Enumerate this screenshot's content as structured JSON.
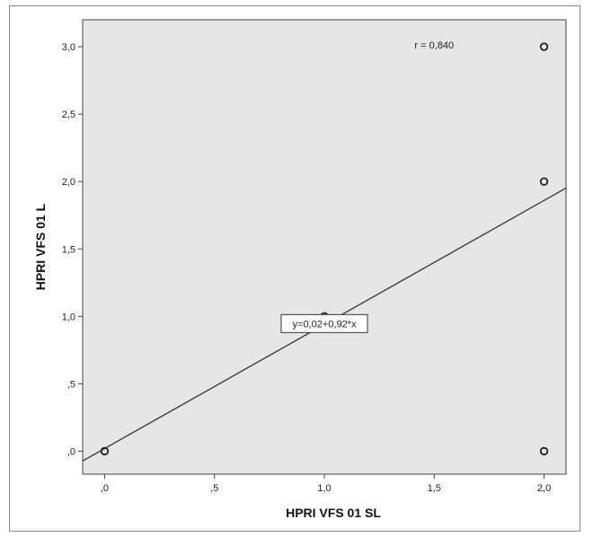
{
  "chart_data": {
    "type": "scatter",
    "xlabel": "HPRI VFS 01 SL",
    "ylabel": "HPRI VFS 01 L",
    "xlim": [
      -0.1,
      2.1
    ],
    "ylim": [
      -0.17,
      3.2
    ],
    "x_ticks": [
      0,
      0.5,
      1.0,
      1.5,
      2.0
    ],
    "x_tick_labels": [
      ",0",
      ",5",
      "1,0",
      "1,5",
      "2,0"
    ],
    "y_ticks": [
      0,
      0.5,
      1.0,
      1.5,
      2.0,
      2.5,
      3.0
    ],
    "y_tick_labels": [
      ",0",
      ",5",
      "1,0",
      "1,5",
      "2,0",
      "2,5",
      "3,0"
    ],
    "points": [
      {
        "x": 0,
        "y": 0
      },
      {
        "x": 1,
        "y": 1
      },
      {
        "x": 2,
        "y": 2
      },
      {
        "x": 2,
        "y": 3
      },
      {
        "x": 2,
        "y": 0
      }
    ],
    "fit_line": {
      "intercept": 0.02,
      "slope": 0.92,
      "label": "y=0,02+0,92*x"
    },
    "correlation_label": "r = 0,840",
    "grid": false,
    "colors": {
      "plot_background": "#e6e6e6",
      "marker": "#222222",
      "line": "#333333"
    }
  }
}
